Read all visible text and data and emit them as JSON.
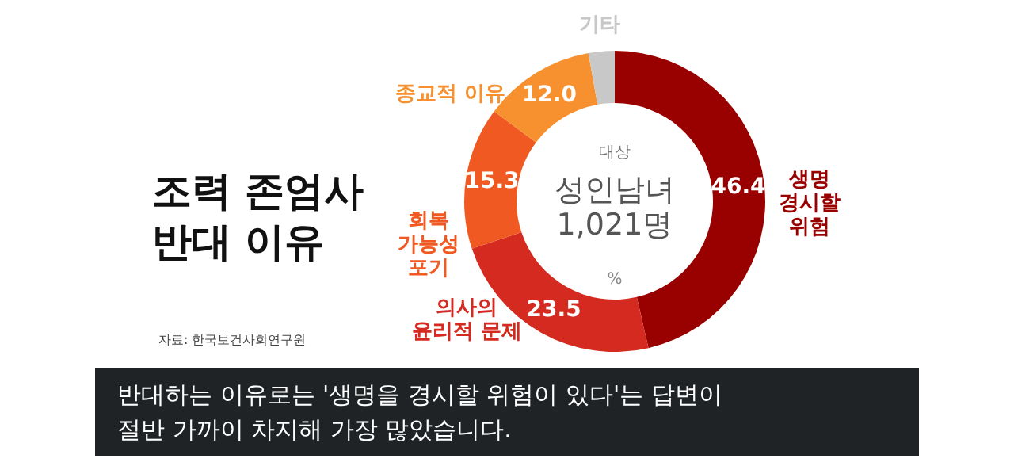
{
  "chart_data": {
    "type": "donut",
    "title": "조력 존엄사\n반대 이유",
    "categories": [
      "생명\n경시할\n위험",
      "의사의\n윤리적 문제",
      "회복\n가능성\n포기",
      "종교적 이유",
      "기타"
    ],
    "values": [
      46.4,
      23.5,
      15.3,
      12.0,
      2.8
    ],
    "colors": [
      "#990000",
      "#d42a20",
      "#f05a22",
      "#f7902f",
      "#c8c8c8"
    ],
    "value_labels": [
      "46.4",
      "23.5",
      "15.3",
      "12.0",
      null
    ],
    "annotations": [
      "자료: 한국보건사회연구원",
      "대상",
      "성인남녀\n1,021명",
      "%",
      "반대하는 이유로는 '생명을 경시할 위험이 있다'는 답변이\n절반 가까이 차지해 가장 많았습니다."
    ]
  }
}
